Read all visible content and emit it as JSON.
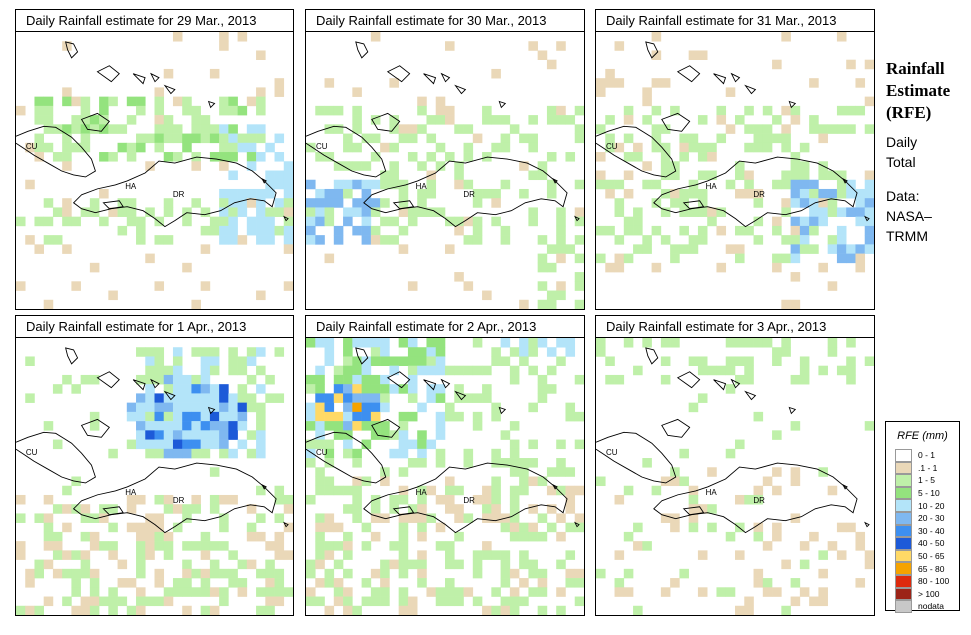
{
  "panels": [
    {
      "title": "Daily Rainfall estimate for  29 Mar., 2013"
    },
    {
      "title": "Daily Rainfall estimate for  30 Mar., 2013"
    },
    {
      "title": "Daily Rainfall estimate for  31 Mar., 2013"
    },
    {
      "title": "Daily Rainfall estimate for  1 Apr., 2013"
    },
    {
      "title": "Daily Rainfall estimate for  2 Apr., 2013"
    },
    {
      "title": "Daily Rainfall estimate for  3 Apr., 2013"
    }
  ],
  "map_labels": {
    "cuba": "CU",
    "haiti": "HA",
    "dominican_republic": "DR"
  },
  "side": {
    "title_line1": "Rainfall",
    "title_line2": "Estimate",
    "title_line3": "(RFE)",
    "sub_line1": "Daily",
    "sub_line2": "Total",
    "data_line1": "Data:",
    "data_line2": "NASA–",
    "data_line3": "TRMM"
  },
  "legend": {
    "title": "RFE (mm)",
    "items": [
      {
        "label": "0 - 1",
        "color": "#ffffff"
      },
      {
        "label": ".1 - 1",
        "color": "#ead8b8"
      },
      {
        "label": "1 - 5",
        "color": "#bff0a9"
      },
      {
        "label": "5 - 10",
        "color": "#94e37e"
      },
      {
        "label": "10 - 20",
        "color": "#b3e4f9"
      },
      {
        "label": "20 - 30",
        "color": "#7fb8f0"
      },
      {
        "label": "30 - 40",
        "color": "#3d8ff0"
      },
      {
        "label": "40 - 50",
        "color": "#1d5ad8"
      },
      {
        "label": "50 - 65",
        "color": "#ffd966"
      },
      {
        "label": "65 - 80",
        "color": "#f5a300"
      },
      {
        "label": "80 - 100",
        "color": "#dd2a0d"
      },
      {
        "label": "> 100",
        "color": "#9c2418"
      },
      {
        "label": "nodata",
        "color": "#c8c8c8"
      }
    ]
  }
}
